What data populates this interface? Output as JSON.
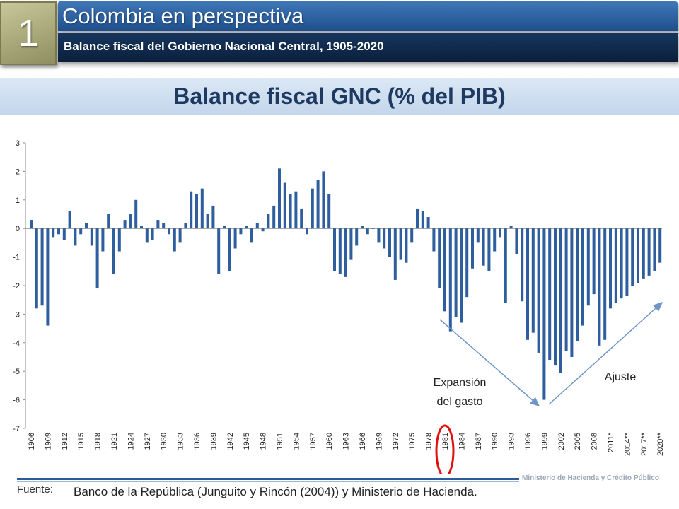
{
  "header": {
    "slide_number": "1",
    "title": "Colombia en perspectiva",
    "subtitle": "Balance fiscal del Gobierno Nacional Central, 1905-2020"
  },
  "chart_title": "Balance fiscal GNC  (% del PIB)",
  "footer": {
    "source_label": "Fuente:",
    "source_text": "Banco de la República (Junguito y Rincón (2004)) y Ministerio de Hacienda.",
    "ministry": "Ministerio de Hacienda y Crédito Público"
  },
  "colors": {
    "bars": "#2e5e9e",
    "arrow": "#6f95c9",
    "highlight": "#e01010"
  },
  "chart_data": {
    "type": "bar",
    "ylim": [
      -7,
      3
    ],
    "yticks": [
      3,
      2,
      1,
      0,
      -1,
      -2,
      -3,
      -4,
      -5,
      -6,
      -7
    ],
    "grid": false,
    "x": [
      1906,
      1907,
      1908,
      1909,
      1910,
      1911,
      1912,
      1913,
      1914,
      1915,
      1916,
      1917,
      1918,
      1919,
      1920,
      1921,
      1922,
      1923,
      1924,
      1925,
      1926,
      1927,
      1928,
      1929,
      1930,
      1931,
      1932,
      1933,
      1934,
      1935,
      1936,
      1937,
      1938,
      1939,
      1940,
      1941,
      1942,
      1943,
      1944,
      1945,
      1946,
      1947,
      1948,
      1949,
      1950,
      1951,
      1952,
      1953,
      1954,
      1955,
      1956,
      1957,
      1958,
      1959,
      1960,
      1961,
      1962,
      1963,
      1964,
      1965,
      1966,
      1967,
      1968,
      1969,
      1970,
      1971,
      1972,
      1973,
      1974,
      1975,
      1976,
      1977,
      1978,
      1979,
      1980,
      1981,
      1982,
      1983,
      1984,
      1985,
      1986,
      1987,
      1988,
      1989,
      1990,
      1991,
      1992,
      1993,
      1994,
      1995,
      1996,
      1997,
      1998,
      1999,
      2000,
      2001,
      2002,
      2003,
      2004,
      2005,
      2006,
      2007,
      2008,
      2009,
      2010,
      2011,
      2012,
      2013,
      2014,
      2015,
      2016,
      2017,
      2018,
      2019,
      2020
    ],
    "values": [
      0.3,
      -2.8,
      -2.7,
      -3.4,
      -0.3,
      -0.2,
      -0.4,
      0.6,
      -0.6,
      -0.2,
      0.2,
      -0.6,
      -2.1,
      -0.8,
      0.5,
      -1.6,
      -0.8,
      0.3,
      0.5,
      1.0,
      0.1,
      -0.5,
      -0.4,
      0.3,
      0.2,
      -0.2,
      -0.8,
      -0.5,
      0.2,
      1.3,
      1.2,
      1.4,
      0.5,
      0.8,
      -1.6,
      0.1,
      -1.5,
      -0.7,
      -0.2,
      0.1,
      -0.5,
      0.2,
      -0.1,
      0.5,
      0.8,
      2.1,
      1.6,
      1.2,
      1.3,
      0.7,
      -0.2,
      1.4,
      1.7,
      2.0,
      1.2,
      -1.5,
      -1.6,
      -1.7,
      -1.1,
      -0.6,
      0.1,
      -0.2,
      0.0,
      -0.5,
      -0.7,
      -1.0,
      -1.8,
      -1.1,
      -1.2,
      -0.5,
      0.7,
      0.6,
      0.4,
      -0.8,
      -2.1,
      -2.9,
      -3.6,
      -3.1,
      -3.3,
      -2.4,
      -1.4,
      -0.5,
      -1.3,
      -1.5,
      -0.8,
      -0.3,
      -2.6,
      0.1,
      -0.9,
      -2.55,
      -3.9,
      -3.65,
      -4.35,
      -6.0,
      -4.6,
      -4.8,
      -5.05,
      -4.3,
      -4.5,
      -3.95,
      -3.4,
      -2.7,
      -2.3,
      -4.1,
      -3.9,
      -2.8,
      -2.6,
      -2.45,
      -2.35,
      -2.0,
      -1.9,
      -1.75,
      -1.65,
      -1.5,
      -1.2
    ],
    "xtick_labels": [
      "1906",
      "1909",
      "1912",
      "1915",
      "1918",
      "1921",
      "1924",
      "1927",
      "1930",
      "1933",
      "1936",
      "1939",
      "1942",
      "1945",
      "1948",
      "1951",
      "1954",
      "1957",
      "1960",
      "1963",
      "1966",
      "1969",
      "1972",
      "1975",
      "1978",
      "1981",
      "1984",
      "1987",
      "1990",
      "1993",
      "1996",
      "1999",
      "2002",
      "2005",
      "2008",
      "2011*",
      "2014**",
      "2017**",
      "2020**"
    ],
    "annotations": {
      "expansion": [
        "Expansión",
        "del gasto"
      ],
      "adjustment": "Ajuste",
      "highlight_year": "1981"
    }
  }
}
